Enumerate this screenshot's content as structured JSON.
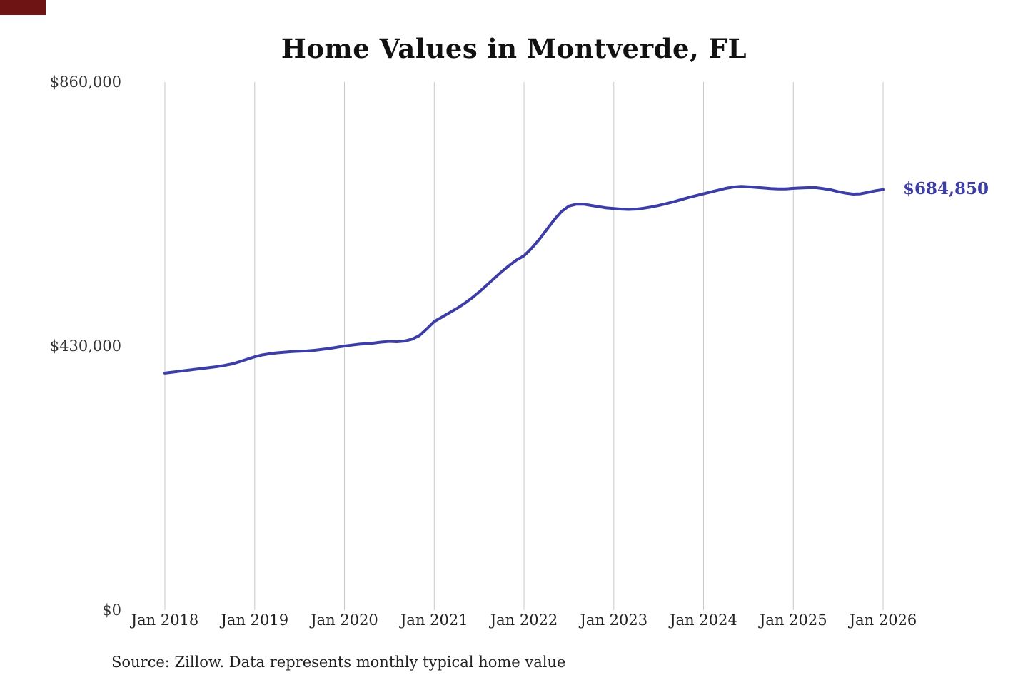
{
  "page": {
    "source_note": "Source: Zillow. Data represents monthly typical home value"
  },
  "chart_data": {
    "type": "line",
    "title": "Home Values in Montverde, FL",
    "x_tick_labels": [
      "Jan 2018",
      "Jan 2019",
      "Jan 2020",
      "Jan 2021",
      "Jan 2022",
      "Jan 2023",
      "Jan 2024",
      "Jan 2025",
      "Jan 2026"
    ],
    "y_tick_labels": [
      "$860,000",
      "$430,000",
      "$0"
    ],
    "ylim": [
      0,
      860000
    ],
    "grid": "vertical-only",
    "legend": "none",
    "line_color": "#3d3da8",
    "gridline_color": "#c8c8c8",
    "end_label": "$684,850",
    "final_value": 684850,
    "x_start": "Jan 2018",
    "x_end": "Jan 2026",
    "frequency": "monthly",
    "series": [
      {
        "name": "Typical home value",
        "values": [
          386000,
          387500,
          389000,
          390500,
          392000,
          393500,
          395000,
          396500,
          398500,
          401000,
          404500,
          408500,
          412500,
          415500,
          417500,
          419000,
          420000,
          421000,
          421500,
          422000,
          423000,
          424500,
          426000,
          428000,
          430000,
          431500,
          433000,
          434000,
          435000,
          436500,
          437500,
          437000,
          438000,
          441000,
          447000,
          458000,
          470000,
          477000,
          484000,
          491000,
          499000,
          508000,
          518000,
          529000,
          540000,
          551000,
          561000,
          570000,
          577000,
          589000,
          603000,
          619000,
          635000,
          649000,
          658000,
          661000,
          661000,
          659000,
          657000,
          655000,
          654000,
          653000,
          652500,
          653000,
          654500,
          656500,
          659000,
          662000,
          665000,
          668500,
          672000,
          675000,
          678000,
          681000,
          684000,
          687000,
          689000,
          690000,
          689500,
          688500,
          687500,
          686500,
          686000,
          686000,
          687000,
          687500,
          688000,
          688000,
          686500,
          684500,
          681500,
          679000,
          677500,
          678000,
          680500,
          683000,
          684850
        ]
      }
    ]
  }
}
